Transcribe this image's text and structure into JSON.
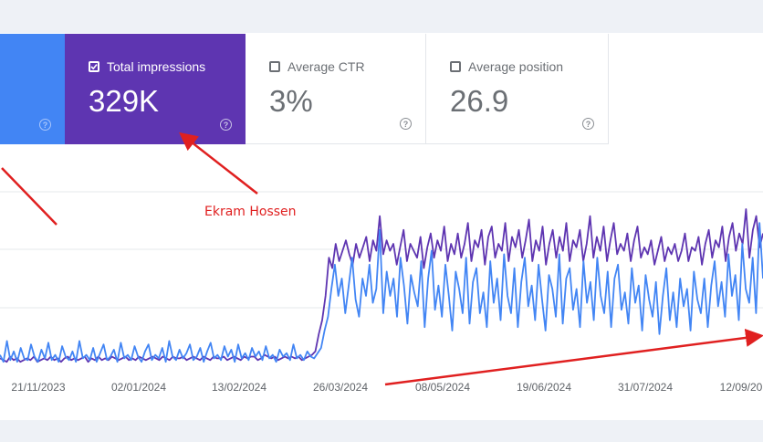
{
  "metrics": {
    "impressions": {
      "label": "Total impressions",
      "value": "329K",
      "checked": true,
      "color": "#5e35b1"
    },
    "ctr": {
      "label": "Average CTR",
      "value": "3%",
      "checked": false
    },
    "position": {
      "label": "Average position",
      "value": "26.9",
      "checked": false
    },
    "clicks": {
      "color": "#4285f4"
    }
  },
  "help_glyph": "?",
  "annotation": "Ekram Hossen",
  "annotation_color": "#e02020",
  "chart_data": {
    "type": "line",
    "x_ticks": [
      "21/11/2023",
      "02/01/2024",
      "13/02/2024",
      "26/03/2024",
      "08/05/2024",
      "19/06/2024",
      "31/07/2024",
      "12/09/20"
    ],
    "grid": true,
    "series": [
      {
        "color": "#5e35b1",
        "values": [
          0.04,
          0.03,
          0.02,
          0.05,
          0.03,
          0.04,
          0.02,
          0.03,
          0.04,
          0.03,
          0.05,
          0.02,
          0.03,
          0.04,
          0.03,
          0.05,
          0.03,
          0.04,
          0.02,
          0.04,
          0.05,
          0.03,
          0.04,
          0.03,
          0.04,
          0.05,
          0.02,
          0.04,
          0.03,
          0.05,
          0.03,
          0.04,
          0.03,
          0.05,
          0.04,
          0.03,
          0.04,
          0.05,
          0.03,
          0.04,
          0.03,
          0.05,
          0.04,
          0.03,
          0.04,
          0.05,
          0.04,
          0.03,
          0.05,
          0.04,
          0.03,
          0.05,
          0.04,
          0.04,
          0.05,
          0.03,
          0.04,
          0.05,
          0.04,
          0.03,
          0.05,
          0.04,
          0.03,
          0.05,
          0.04,
          0.04,
          0.05,
          0.03,
          0.04,
          0.05,
          0.04,
          0.03,
          0.05,
          0.04,
          0.05,
          0.05,
          0.03,
          0.04,
          0.06,
          0.05,
          0.04,
          0.05,
          0.03,
          0.04,
          0.05,
          0.04,
          0.05,
          0.04,
          0.05,
          0.03,
          0.04,
          0.05,
          0.06,
          0.08,
          0.18,
          0.26,
          0.4,
          0.62,
          0.56,
          0.7,
          0.6,
          0.66,
          0.72,
          0.64,
          0.58,
          0.7,
          0.62,
          0.68,
          0.74,
          0.6,
          0.72,
          0.66,
          0.86,
          0.64,
          0.72,
          0.66,
          0.7,
          0.58,
          0.68,
          0.78,
          0.6,
          0.7,
          0.66,
          0.62,
          0.74,
          0.56,
          0.68,
          0.76,
          0.62,
          0.72,
          0.66,
          0.8,
          0.6,
          0.7,
          0.64,
          0.76,
          0.62,
          0.7,
          0.82,
          0.6,
          0.72,
          0.68,
          0.78,
          0.58,
          0.74,
          0.8,
          0.62,
          0.7,
          0.66,
          0.82,
          0.6,
          0.74,
          0.68,
          0.78,
          0.62,
          0.72,
          0.84,
          0.6,
          0.72,
          0.66,
          0.8,
          0.58,
          0.7,
          0.78,
          0.62,
          0.74,
          0.66,
          0.82,
          0.6,
          0.72,
          0.68,
          0.78,
          0.6,
          0.7,
          0.86,
          0.62,
          0.74,
          0.66,
          0.8,
          0.6,
          0.72,
          0.82,
          0.64,
          0.7,
          0.66,
          0.76,
          0.6,
          0.72,
          0.8,
          0.62,
          0.68,
          0.64,
          0.72,
          0.58,
          0.66,
          0.74,
          0.6,
          0.68,
          0.64,
          0.7,
          0.6,
          0.66,
          0.76,
          0.6,
          0.68,
          0.66,
          0.74,
          0.58,
          0.7,
          0.78,
          0.62,
          0.72,
          0.68,
          0.8,
          0.6,
          0.74,
          0.82,
          0.66,
          0.76,
          0.7,
          0.9,
          0.62,
          0.78,
          0.86,
          0.68,
          0.76
        ]
      },
      {
        "color": "#4285f4",
        "values": [
          0.06,
          0.02,
          0.14,
          0.03,
          0.08,
          0.02,
          0.1,
          0.04,
          0.03,
          0.12,
          0.05,
          0.02,
          0.09,
          0.04,
          0.13,
          0.03,
          0.06,
          0.02,
          0.11,
          0.05,
          0.03,
          0.08,
          0.02,
          0.14,
          0.04,
          0.06,
          0.03,
          0.1,
          0.02,
          0.07,
          0.12,
          0.03,
          0.05,
          0.09,
          0.02,
          0.13,
          0.04,
          0.06,
          0.03,
          0.11,
          0.05,
          0.02,
          0.08,
          0.12,
          0.03,
          0.06,
          0.04,
          0.1,
          0.02,
          0.14,
          0.05,
          0.03,
          0.09,
          0.04,
          0.07,
          0.12,
          0.03,
          0.05,
          0.1,
          0.02,
          0.08,
          0.13,
          0.04,
          0.06,
          0.03,
          0.11,
          0.05,
          0.09,
          0.02,
          0.12,
          0.04,
          0.07,
          0.03,
          0.1,
          0.05,
          0.08,
          0.03,
          0.11,
          0.04,
          0.06,
          0.02,
          0.09,
          0.05,
          0.07,
          0.03,
          0.12,
          0.04,
          0.06,
          0.03,
          0.08,
          0.05,
          0.04,
          0.07,
          0.1,
          0.2,
          0.28,
          0.44,
          0.58,
          0.4,
          0.5,
          0.3,
          0.46,
          0.62,
          0.38,
          0.28,
          0.5,
          0.4,
          0.58,
          0.36,
          0.44,
          0.78,
          0.3,
          0.54,
          0.4,
          0.5,
          0.28,
          0.62,
          0.46,
          0.24,
          0.52,
          0.42,
          0.34,
          0.6,
          0.22,
          0.5,
          0.66,
          0.32,
          0.46,
          0.28,
          0.58,
          0.4,
          0.2,
          0.54,
          0.44,
          0.3,
          0.62,
          0.24,
          0.48,
          0.56,
          0.3,
          0.42,
          0.22,
          0.6,
          0.36,
          0.5,
          0.26,
          0.64,
          0.4,
          0.3,
          0.56,
          0.22,
          0.48,
          0.62,
          0.34,
          0.46,
          0.26,
          0.58,
          0.38,
          0.2,
          0.52,
          0.44,
          0.28,
          0.64,
          0.24,
          0.5,
          0.56,
          0.32,
          0.44,
          0.22,
          0.6,
          0.36,
          0.48,
          0.26,
          0.62,
          0.4,
          0.3,
          0.54,
          0.22,
          0.5,
          0.58,
          0.32,
          0.42,
          0.24,
          0.56,
          0.36,
          0.46,
          0.2,
          0.52,
          0.38,
          0.28,
          0.48,
          0.18,
          0.4,
          0.56,
          0.26,
          0.42,
          0.22,
          0.5,
          0.34,
          0.44,
          0.2,
          0.54,
          0.38,
          0.3,
          0.5,
          0.22,
          0.46,
          0.6,
          0.34,
          0.48,
          0.28,
          0.64,
          0.4,
          0.52,
          0.26,
          0.7,
          0.44,
          0.36,
          0.62,
          0.3,
          0.82,
          0.5
        ]
      }
    ]
  }
}
